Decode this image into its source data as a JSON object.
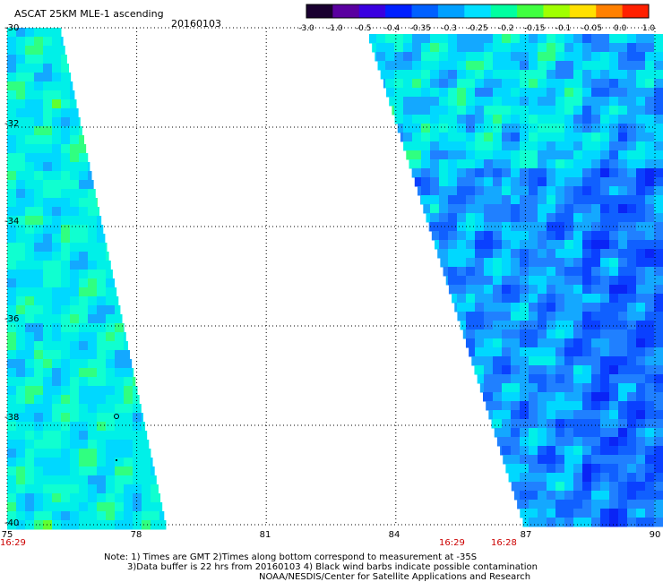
{
  "header": {
    "title": "ASCAT 25KM MLE-1 ascending",
    "date": "20160103"
  },
  "colorbar": {
    "tick_labels": [
      "-3.0",
      "-1.0",
      "-0.5",
      "-0.4",
      "-0.35",
      "-0.3",
      "-0.25",
      "-0.2",
      "-0.15",
      "-0.1",
      "-0.05",
      "0.0",
      "1.0"
    ],
    "colors": [
      "#1a0030",
      "#5a00a0",
      "#3a00e0",
      "#0020ff",
      "#0060ff",
      "#00a0ff",
      "#00e0ff",
      "#00ffa0",
      "#40ff40",
      "#a0ff00",
      "#ffe000",
      "#ff8000",
      "#ff2000"
    ]
  },
  "map": {
    "lat_labels": [
      "-30",
      "-32",
      "-34",
      "-36",
      "-38",
      "-40"
    ],
    "lon_labels": [
      "75",
      "78",
      "81",
      "84",
      "87",
      "90"
    ],
    "time_labels": [
      "16:29",
      "16:29",
      "16:28"
    ],
    "lat_range": [
      -40,
      -30
    ],
    "lon_range": [
      75,
      90
    ]
  },
  "footer": {
    "note_line1": "Note: 1) Times are GMT 2)Times along bottom correspond to measurement at -35S",
    "note_line2": "3)Data buffer is 22 hrs from 20160103 4) Black wind barbs indicate possible contamination",
    "note_line3": "NOAA/NESDIS/Center for Satellite Applications and Research"
  },
  "colors": {
    "background": "#ffffff",
    "grid": "#000000",
    "time_label": "#cc0000"
  }
}
